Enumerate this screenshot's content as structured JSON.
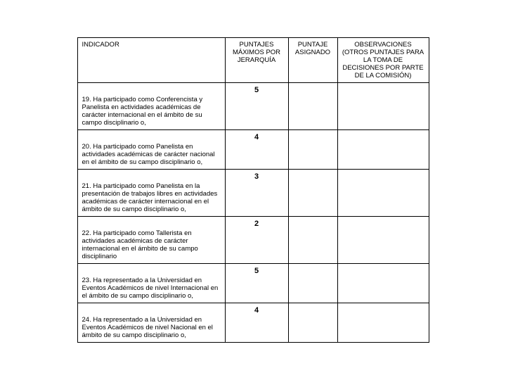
{
  "columns": {
    "c1": "INDICADOR",
    "c2": "PUNTAJES MÁXIMOS POR JERARQUÍA",
    "c3": "PUNTAJE ASIGNADO",
    "c4": "OBSERVACIONES (OTROS PUNTAJES PARA LA TOMA DE DECISIONES POR PARTE DE LA COMISIÓN)"
  },
  "rows": [
    {
      "indicator": "19. Ha participado como Conferencista y Panelista en actividades académicas de carácter internacional en el ámbito de su campo disciplinario o,",
      "max": "5",
      "assigned": "",
      "obs": ""
    },
    {
      "indicator": "20. Ha participado como Panelista en actividades académicas de carácter nacional en el ámbito de su campo disciplinario o,",
      "max": "4",
      "assigned": "",
      "obs": ""
    },
    {
      "indicator": "21. Ha participado como Panelista en la presentación de trabajos libres en actividades académicas de carácter internacional en el ámbito de su campo disciplinario o,",
      "max": "3",
      "assigned": "",
      "obs": ""
    },
    {
      "indicator": "22. Ha participado como Tallerista en actividades académicas de carácter internacional en el ámbito de su campo disciplinario",
      "max": "2",
      "assigned": "",
      "obs": ""
    },
    {
      "indicator": "23. Ha representado a la Universidad en Eventos Académicos de nivel Internacional en el ámbito de su campo disciplinario o,",
      "max": "5",
      "assigned": "",
      "obs": ""
    },
    {
      "indicator": "24. Ha representado a la Universidad en Eventos Académicos de nivel Nacional en el ámbito de su campo disciplinario o,",
      "max": "4",
      "assigned": "",
      "obs": ""
    }
  ]
}
